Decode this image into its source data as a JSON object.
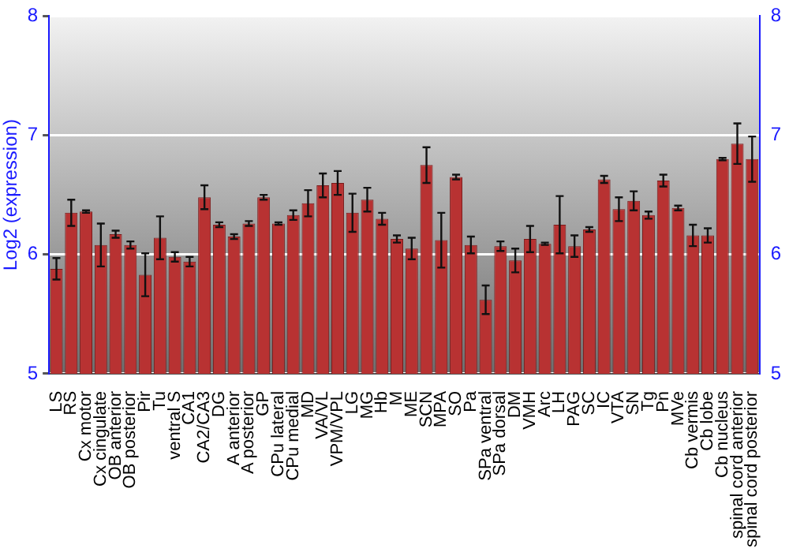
{
  "chart_data": {
    "type": "bar",
    "ylabel": "Log2 (expression)",
    "categories": [
      "LS",
      "RS",
      "Cx motor",
      "Cx cingulate",
      "OB anterior",
      "OB posterior",
      "Pir",
      "Tu",
      "ventral S",
      "CA1",
      "CA2/CA3",
      "DG",
      "A anterior",
      "A posterior",
      "GP",
      "CPu lateral",
      "CPu medial",
      "MD",
      "VA/VL",
      "VPM/VPL",
      "LG",
      "MG",
      "Hb",
      "M",
      "ME",
      "SCN",
      "MPA",
      "SO",
      "Pa",
      "SPa ventral",
      "SPa dorsal",
      "DM",
      "VMH",
      "Arc",
      "LH",
      "PAG",
      "SC",
      "IC",
      "VTA",
      "SN",
      "Tg",
      "Pn",
      "MVe",
      "Cb vermis",
      "Cb lobe",
      "Cb nucleus",
      "spinal cord anterior",
      "spinal cord posterior"
    ],
    "values": [
      5.88,
      6.35,
      6.36,
      6.08,
      6.17,
      6.08,
      5.83,
      6.14,
      5.98,
      5.94,
      6.48,
      6.25,
      6.15,
      6.26,
      6.48,
      6.26,
      6.33,
      6.43,
      6.58,
      6.6,
      6.35,
      6.46,
      6.3,
      6.13,
      6.05,
      6.75,
      6.12,
      6.65,
      6.08,
      5.62,
      6.07,
      5.95,
      6.13,
      6.09,
      6.25,
      6.07,
      6.21,
      6.63,
      6.38,
      6.45,
      6.33,
      6.62,
      6.39,
      6.16,
      6.16,
      6.8,
      6.93,
      6.8
    ],
    "errors": [
      0.09,
      0.11,
      0.01,
      0.18,
      0.03,
      0.03,
      0.18,
      0.18,
      0.04,
      0.04,
      0.1,
      0.02,
      0.02,
      0.02,
      0.02,
      0.01,
      0.04,
      0.11,
      0.1,
      0.1,
      0.16,
      0.1,
      0.05,
      0.03,
      0.09,
      0.15,
      0.23,
      0.02,
      0.07,
      0.12,
      0.04,
      0.1,
      0.11,
      0.01,
      0.24,
      0.09,
      0.02,
      0.03,
      0.1,
      0.08,
      0.03,
      0.05,
      0.02,
      0.09,
      0.06,
      0.01,
      0.17,
      0.19
    ],
    "color": "#b83232",
    "ylim": [
      5,
      8
    ],
    "yticks": [
      5,
      6,
      7,
      8
    ],
    "y2lim": [
      5,
      8
    ],
    "y2ticks": [
      5,
      6,
      7,
      8
    ],
    "grid": "y"
  }
}
